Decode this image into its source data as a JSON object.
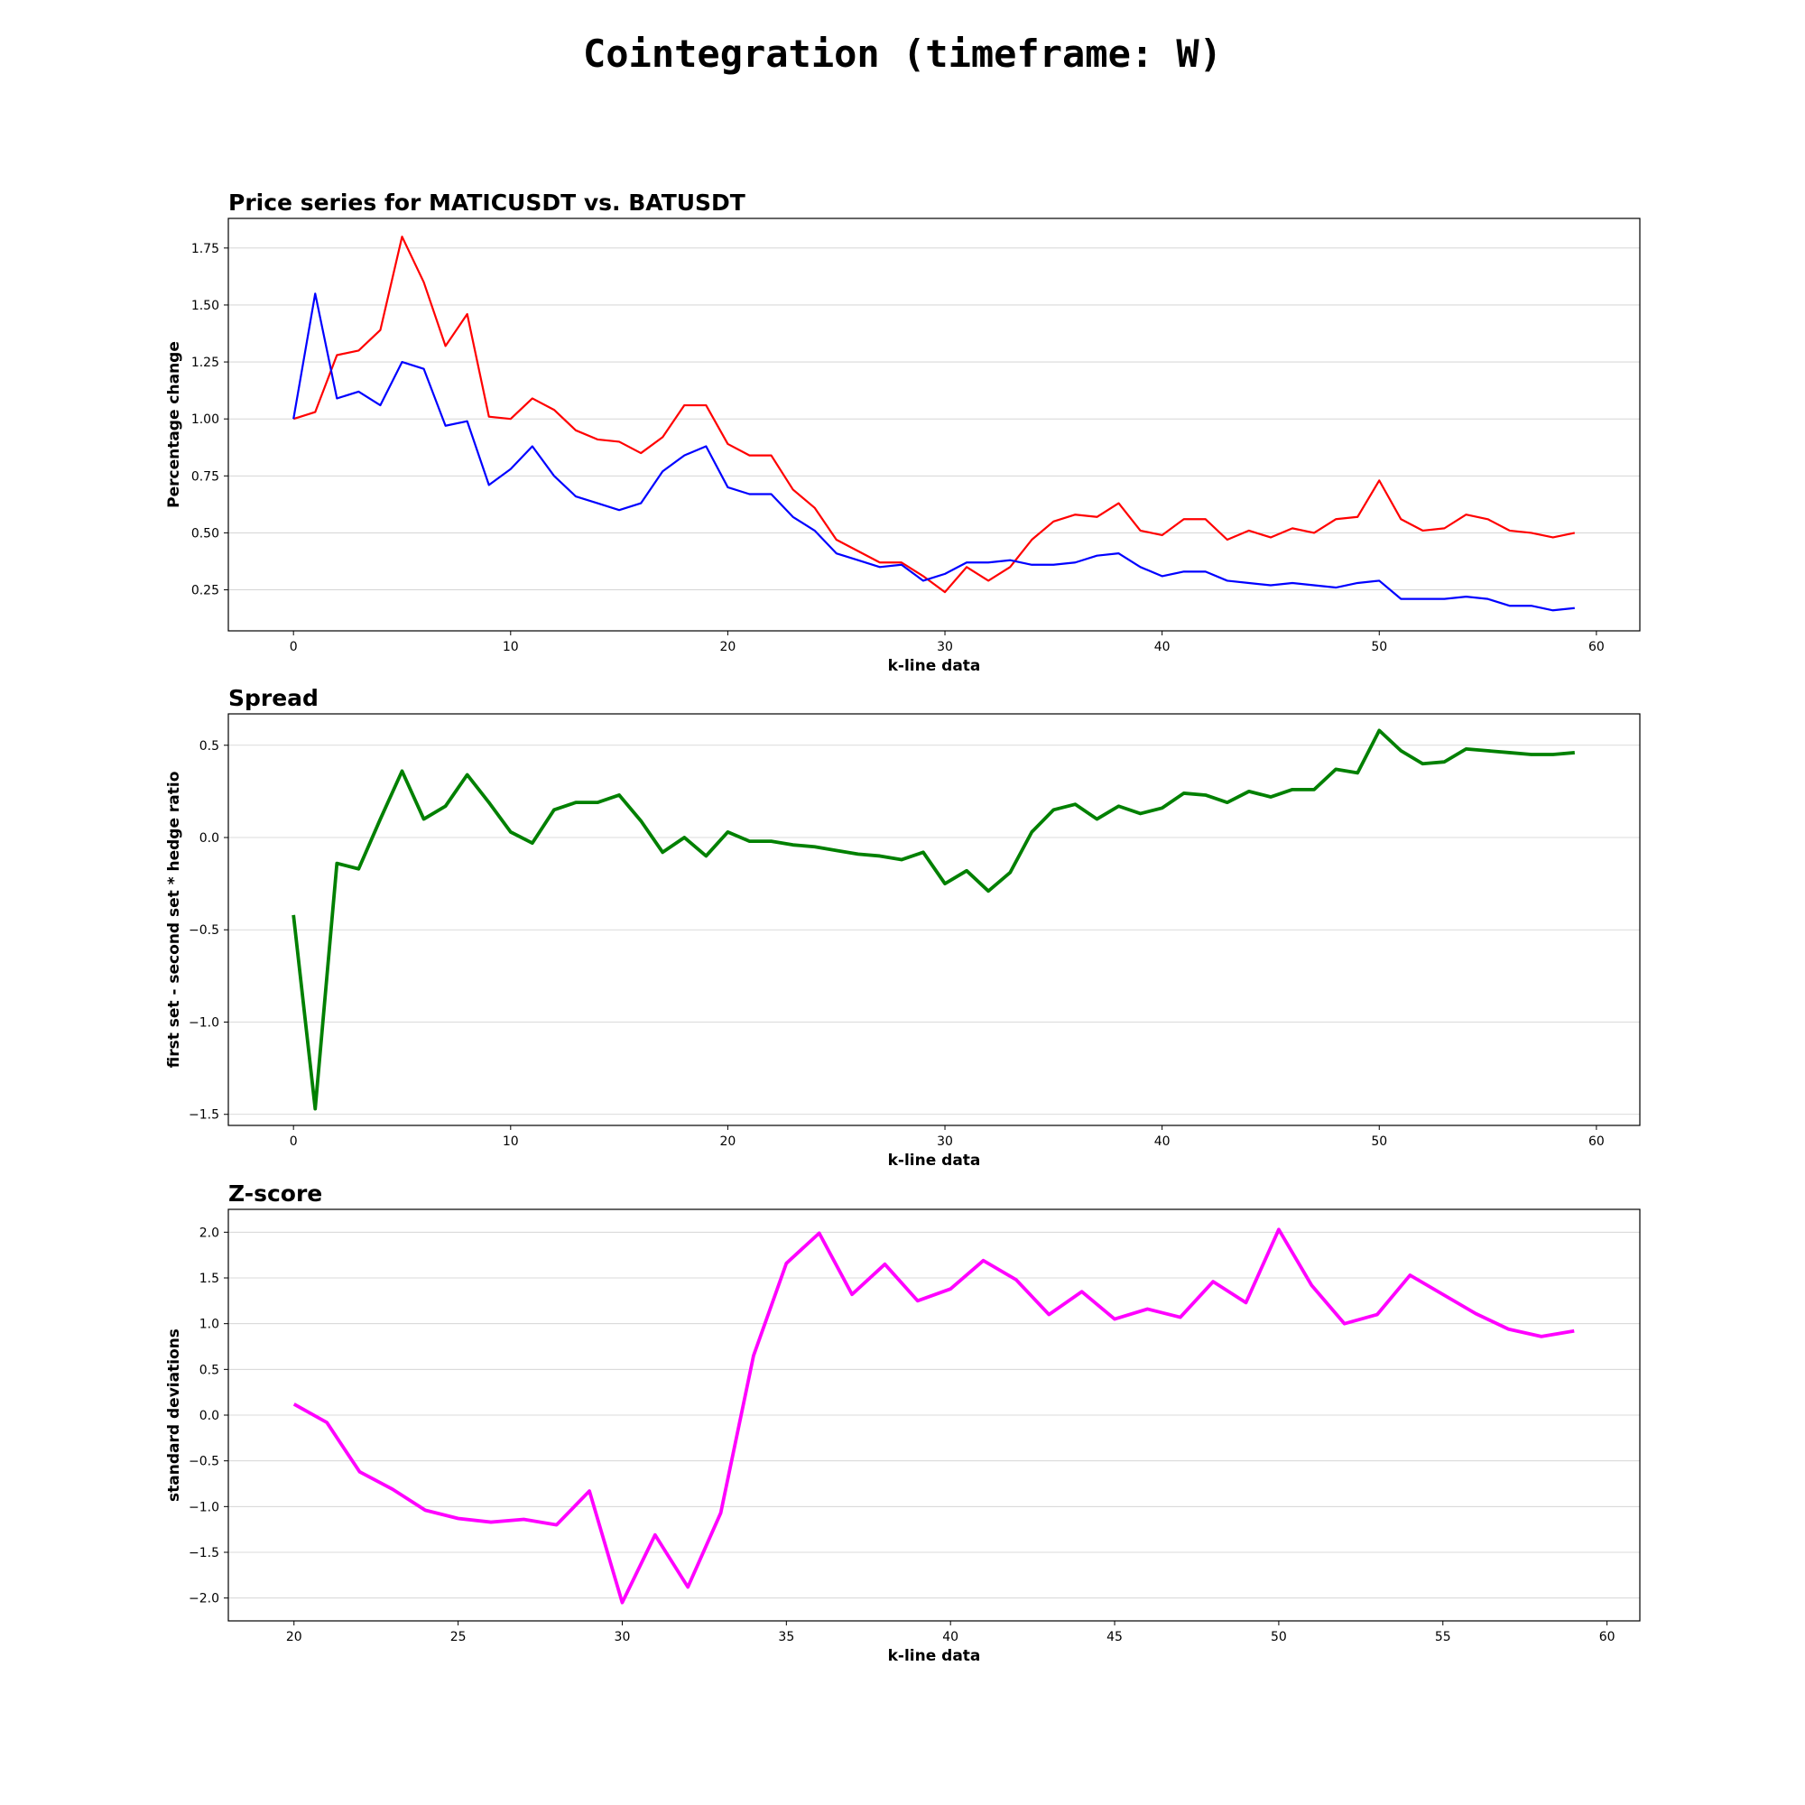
{
  "suptitle": "Cointegration (timeframe: W)",
  "chart_data": [
    {
      "type": "line",
      "title": "Price series for MATICUSDT vs. BATUSDT",
      "xlabel": "k-line data",
      "ylabel": "Percentage change",
      "xlim": [
        -3,
        62
      ],
      "ylim": [
        0.07,
        1.88
      ],
      "xticks": [
        0,
        10,
        20,
        30,
        40,
        50,
        60
      ],
      "yticks": [
        0.25,
        0.5,
        0.75,
        1.0,
        1.25,
        1.5,
        1.75
      ],
      "ytick_decimals": 2,
      "grid": "y",
      "x": [
        0,
        1,
        2,
        3,
        4,
        5,
        6,
        7,
        8,
        9,
        10,
        11,
        12,
        13,
        14,
        15,
        16,
        17,
        18,
        19,
        20,
        21,
        22,
        23,
        24,
        25,
        26,
        27,
        28,
        29,
        30,
        31,
        32,
        33,
        34,
        35,
        36,
        37,
        38,
        39,
        40,
        41,
        42,
        43,
        44,
        45,
        46,
        47,
        48,
        49,
        50,
        51,
        52,
        53,
        54,
        55,
        56,
        57,
        58,
        59
      ],
      "series": [
        {
          "color": "#ff0000",
          "linewidth": 2.2,
          "values": [
            1.0,
            1.03,
            1.28,
            1.3,
            1.39,
            1.8,
            1.6,
            1.32,
            1.46,
            1.01,
            1.0,
            1.09,
            1.04,
            0.95,
            0.91,
            0.9,
            0.85,
            0.92,
            1.06,
            1.06,
            0.89,
            0.84,
            0.84,
            0.69,
            0.61,
            0.47,
            0.42,
            0.37,
            0.37,
            0.31,
            0.24,
            0.35,
            0.29,
            0.35,
            0.47,
            0.55,
            0.58,
            0.57,
            0.63,
            0.51,
            0.49,
            0.56,
            0.56,
            0.47,
            0.51,
            0.48,
            0.52,
            0.5,
            0.56,
            0.57,
            0.73,
            0.56,
            0.51,
            0.52,
            0.58,
            0.56,
            0.51,
            0.5,
            0.48,
            0.5
          ]
        },
        {
          "color": "#0000ff",
          "linewidth": 2.2,
          "values": [
            1.0,
            1.55,
            1.09,
            1.12,
            1.06,
            1.25,
            1.22,
            0.97,
            0.99,
            0.71,
            0.78,
            0.88,
            0.75,
            0.66,
            0.63,
            0.6,
            0.63,
            0.77,
            0.84,
            0.88,
            0.7,
            0.67,
            0.67,
            0.57,
            0.51,
            0.41,
            0.38,
            0.35,
            0.36,
            0.29,
            0.32,
            0.37,
            0.37,
            0.38,
            0.36,
            0.36,
            0.37,
            0.4,
            0.41,
            0.35,
            0.31,
            0.33,
            0.33,
            0.29,
            0.28,
            0.27,
            0.28,
            0.27,
            0.26,
            0.28,
            0.29,
            0.21,
            0.21,
            0.21,
            0.22,
            0.21,
            0.18,
            0.18,
            0.16,
            0.17
          ]
        }
      ]
    },
    {
      "type": "line",
      "title": "Spread",
      "xlabel": "k-line data",
      "ylabel": "first set - second set * hedge ratio",
      "xlim": [
        -3,
        62
      ],
      "ylim": [
        -1.56,
        0.67
      ],
      "xticks": [
        0,
        10,
        20,
        30,
        40,
        50,
        60
      ],
      "yticks": [
        -1.5,
        -1.0,
        -0.5,
        0.0,
        0.5
      ],
      "ytick_decimals": 1,
      "grid": "y",
      "x": [
        0,
        1,
        2,
        3,
        4,
        5,
        6,
        7,
        8,
        9,
        10,
        11,
        12,
        13,
        14,
        15,
        16,
        17,
        18,
        19,
        20,
        21,
        22,
        23,
        24,
        25,
        26,
        27,
        28,
        29,
        30,
        31,
        32,
        33,
        34,
        35,
        36,
        37,
        38,
        39,
        40,
        41,
        42,
        43,
        44,
        45,
        46,
        47,
        48,
        49,
        50,
        51,
        52,
        53,
        54,
        55,
        56,
        57,
        58,
        59
      ],
      "series": [
        {
          "color": "#008000",
          "linewidth": 3.8,
          "values": [
            -0.42,
            -1.47,
            -0.14,
            -0.17,
            0.1,
            0.36,
            0.1,
            0.17,
            0.34,
            0.19,
            0.03,
            -0.03,
            0.15,
            0.19,
            0.19,
            0.23,
            0.09,
            -0.08,
            -0.0,
            -0.1,
            0.03,
            -0.02,
            -0.02,
            -0.04,
            -0.05,
            -0.07,
            -0.09,
            -0.1,
            -0.12,
            -0.08,
            -0.25,
            -0.18,
            -0.29,
            -0.19,
            0.03,
            0.15,
            0.18,
            0.1,
            0.17,
            0.13,
            0.16,
            0.24,
            0.23,
            0.19,
            0.25,
            0.22,
            0.26,
            0.26,
            0.37,
            0.35,
            0.58,
            0.47,
            0.4,
            0.41,
            0.48,
            0.47,
            0.46,
            0.45,
            0.45,
            0.46
          ]
        }
      ]
    },
    {
      "type": "line",
      "title": "Z-score",
      "xlabel": "k-line data",
      "ylabel": "standard deviations",
      "xlim": [
        18,
        61
      ],
      "ylim": [
        -2.25,
        2.25
      ],
      "xticks": [
        20,
        25,
        30,
        35,
        40,
        45,
        50,
        55,
        60
      ],
      "yticks": [
        -2.0,
        -1.5,
        -1.0,
        -0.5,
        0.0,
        0.5,
        1.0,
        1.5,
        2.0
      ],
      "ytick_decimals": 1,
      "grid": "y",
      "x": [
        20,
        21,
        22,
        23,
        24,
        25,
        26,
        27,
        28,
        29,
        30,
        31,
        32,
        33,
        34,
        35,
        36,
        37,
        38,
        39,
        40,
        41,
        42,
        43,
        44,
        45,
        46,
        47,
        48,
        49,
        50,
        51,
        52,
        53,
        54,
        55,
        56,
        57,
        58,
        59
      ],
      "series": [
        {
          "color": "#ff00ff",
          "linewidth": 3.8,
          "values": [
            0.12,
            -0.08,
            -0.62,
            -0.81,
            -1.04,
            -1.13,
            -1.17,
            -1.14,
            -1.2,
            -0.83,
            -2.05,
            -1.31,
            -1.88,
            -1.07,
            0.65,
            1.66,
            1.99,
            1.32,
            1.65,
            1.25,
            1.38,
            1.69,
            1.48,
            1.1,
            1.35,
            1.05,
            1.16,
            1.07,
            1.46,
            1.23,
            2.03,
            1.42,
            1.0,
            1.1,
            1.53,
            1.32,
            1.11,
            0.94,
            0.86,
            0.92
          ]
        }
      ]
    }
  ]
}
